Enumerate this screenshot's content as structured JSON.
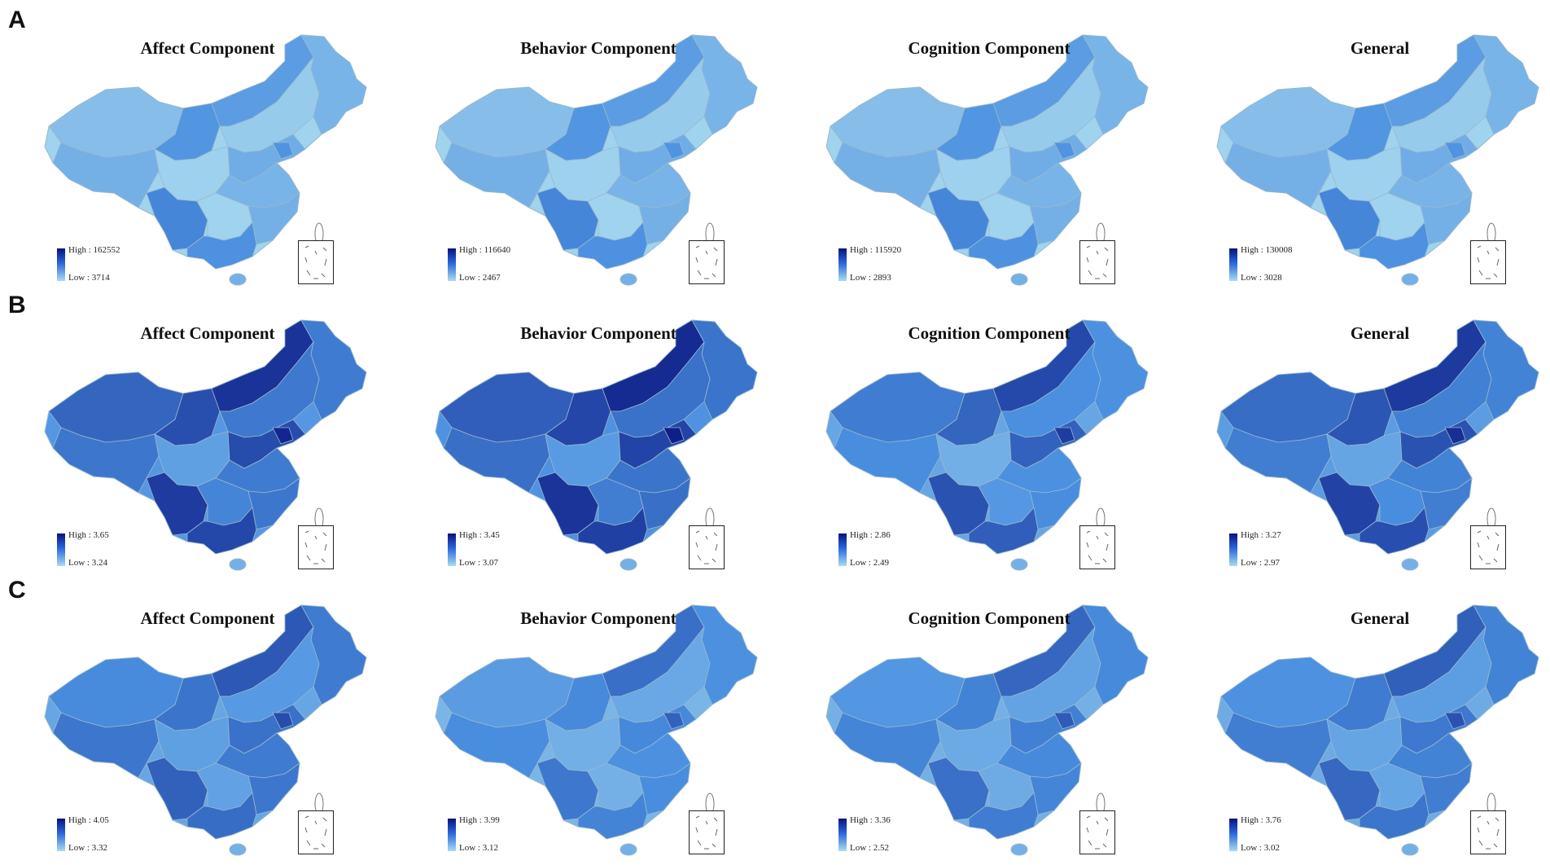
{
  "rows": [
    {
      "label": "A",
      "panels": [
        {
          "title": "Affect Component",
          "legend_high": "High : 162552",
          "legend_low": "Low : 3714",
          "level": 0.15
        },
        {
          "title": "Behavior Component",
          "legend_high": "High : 116640",
          "legend_low": "Low : 2467",
          "level": 0.15
        },
        {
          "title": "Cognition Component",
          "legend_high": "High : 115920",
          "legend_low": "Low : 2893",
          "level": 0.15
        },
        {
          "title": "General",
          "legend_high": "High : 130008",
          "legend_low": "Low : 3028",
          "level": 0.15
        }
      ]
    },
    {
      "label": "B",
      "panels": [
        {
          "title": "Affect Component",
          "legend_high": "High : 3.65",
          "legend_low": "Low : 3.24",
          "level": 0.75
        },
        {
          "title": "Behavior Component",
          "legend_high": "High : 3.45",
          "legend_low": "Low : 3.07",
          "level": 0.8
        },
        {
          "title": "Cognition Component",
          "legend_high": "High : 2.86",
          "legend_low": "Low : 2.49",
          "level": 0.6
        },
        {
          "title": "General",
          "legend_high": "High : 3.27",
          "legend_low": "Low : 2.97",
          "level": 0.7
        }
      ]
    },
    {
      "label": "C",
      "panels": [
        {
          "title": "Affect Component",
          "legend_high": "High : 4.05",
          "legend_low": "Low : 3.32",
          "level": 0.6
        },
        {
          "title": "Behavior Component",
          "legend_high": "High : 3.99",
          "legend_low": "Low : 3.12",
          "level": 0.45
        },
        {
          "title": "Cognition Component",
          "legend_high": "High : 3.36",
          "legend_low": "Low : 2.52",
          "level": 0.5
        },
        {
          "title": "General",
          "legend_high": "High : 3.76",
          "legend_low": "Low : 3.02",
          "level": 0.55
        }
      ]
    }
  ],
  "colors": {
    "low": "#b3e2f0",
    "mid": "#4a8fe0",
    "high": "#08127f",
    "border": "#9ab8cc"
  }
}
